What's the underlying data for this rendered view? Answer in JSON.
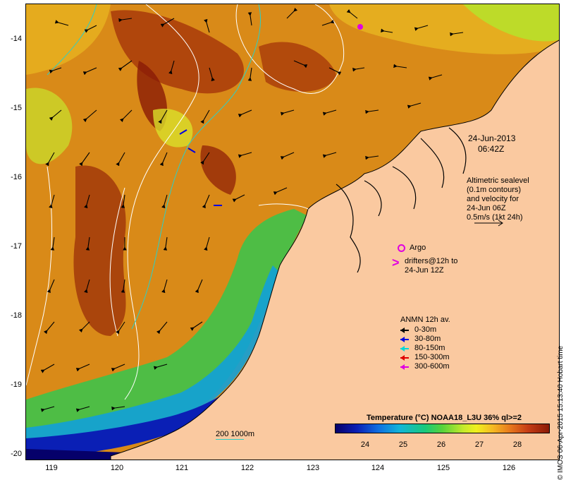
{
  "map": {
    "y_axis_labels": [
      "-14",
      "-15",
      "-16",
      "-17",
      "-18",
      "-19",
      "-20"
    ],
    "x_axis_labels": [
      "119",
      "120",
      "121",
      "122",
      "123",
      "124",
      "125",
      "126"
    ],
    "date_line1": "24-Jun-2013",
    "date_line2": "06:42Z",
    "altimetry_note": [
      "Altimetric sealevel",
      "(0.1m contours)",
      "and velocity for",
      "24-Jun 06Z",
      "0.5m/s (1kt 24h)"
    ],
    "argo_label": "Argo",
    "drifters_label": [
      "drifters@12h to",
      "24-Jun 12Z"
    ],
    "anmn_legend": {
      "title": "ANMN 12h av.",
      "items": [
        {
          "label": "0-30m",
          "color": "#000000"
        },
        {
          "label": "30-80m",
          "color": "#0000e0"
        },
        {
          "label": "80-150m",
          "color": "#00d8d8"
        },
        {
          "label": "150-300m",
          "color": "#e00000"
        },
        {
          "label": "300-600m",
          "color": "#e000e0"
        }
      ]
    },
    "colorbar": {
      "title": "Temperature (°C) NOAA18_L3U 36% ql>=2",
      "ticks": [
        "24",
        "25",
        "26",
        "27",
        "28"
      ]
    },
    "depth_contour_label": "200  1000m",
    "timestamp": "© IMOS 06-Apr-2015 15:13:40 Hobart time",
    "colors": {
      "land": "#fac9a0",
      "sst_warm": "#c6620e",
      "sst_hot": "#8a1a06",
      "sst_mid": "#e6a21c",
      "sst_cool": "#58c03b",
      "sst_cold": "#0a1fb5"
    }
  }
}
